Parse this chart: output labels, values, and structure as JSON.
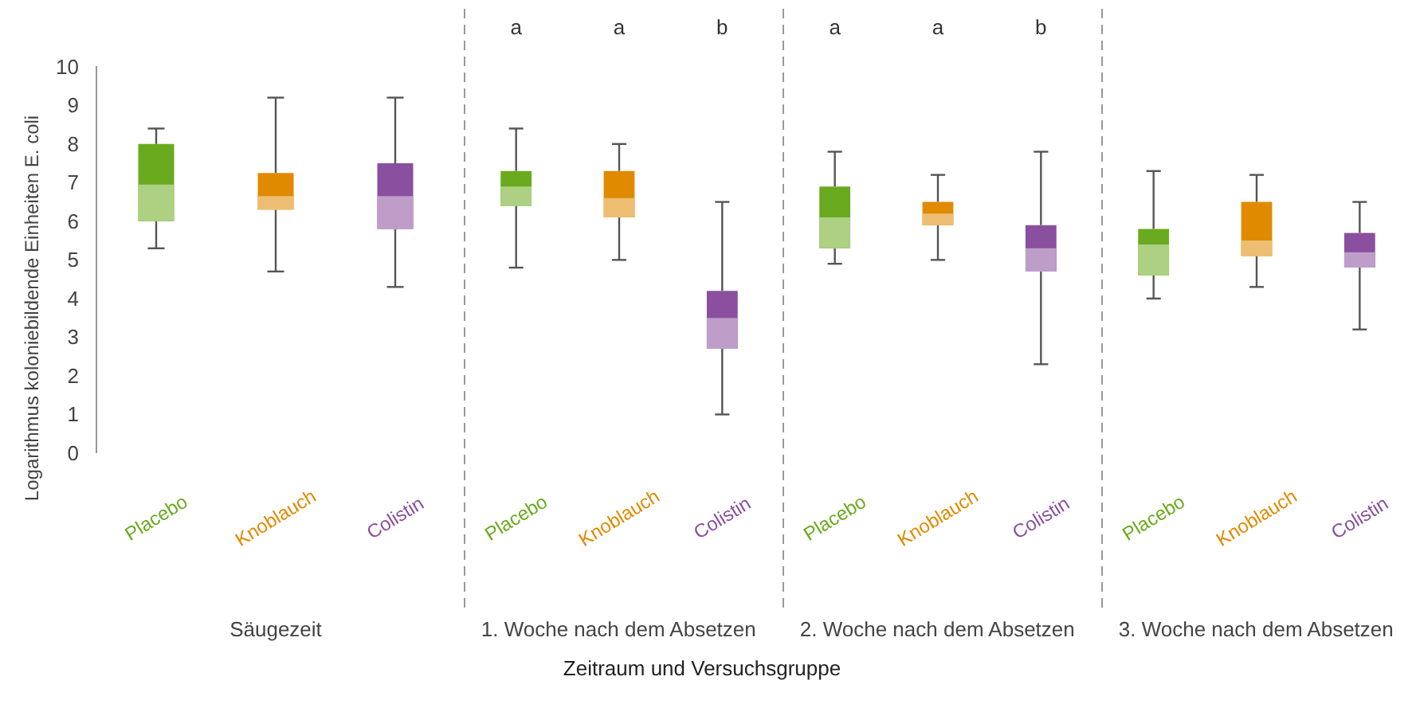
{
  "chart_data": [
    {
      "type": "box",
      "xlabel": "Säugezeit",
      "ylabel": "Logarithmus koloniebildende Einheiten E. coli",
      "categories": [
        "Placebo",
        "Knoblauch",
        "Colistin"
      ],
      "colors": [
        "#6aaa1e",
        "#e08a00",
        "#8a4f9e"
      ],
      "ylim": [
        -4,
        11.5
      ],
      "yticks": [
        0,
        1,
        2,
        3,
        4,
        5,
        6,
        7,
        8,
        9,
        10
      ],
      "grid": false,
      "boxes": [
        {
          "low": 5.3,
          "q1": 6.0,
          "median": 6.95,
          "q3": 8.0,
          "high": 8.4
        },
        {
          "low": 4.7,
          "q1": 6.3,
          "median": 6.65,
          "q3": 7.25,
          "high": 9.2
        },
        {
          "low": 4.3,
          "q1": 5.8,
          "median": 6.65,
          "q3": 7.5,
          "high": 9.2
        }
      ],
      "annotations": [
        "Zeitraum und Versuchsgruppe"
      ]
    },
    {
      "type": "box",
      "xlabel": "1. Woche nach dem Absetzen",
      "categories": [
        "Placebo",
        "Knoblauch",
        "Colistin"
      ],
      "colors": [
        "#6aaa1e",
        "#e08a00",
        "#8a4f9e"
      ],
      "ylim": [
        -4,
        11.5
      ],
      "tick_labels": "x",
      "grid": false,
      "boxes": [
        {
          "low": 4.8,
          "q1": 6.4,
          "median": 6.9,
          "q3": 7.3,
          "high": 8.4
        },
        {
          "low": 5.0,
          "q1": 6.1,
          "median": 6.6,
          "q3": 7.3,
          "high": 8.0
        },
        {
          "low": 1.0,
          "q1": 2.7,
          "median": 3.5,
          "q3": 4.2,
          "high": 6.5
        }
      ],
      "annotations": [
        "a",
        "a",
        "b"
      ]
    },
    {
      "type": "box",
      "xlabel": "2. Woche nach dem Absetzen",
      "categories": [
        "Placebo",
        "Knoblauch",
        "Colistin"
      ],
      "colors": [
        "#6aaa1e",
        "#e08a00",
        "#8a4f9e"
      ],
      "ylim": [
        -4,
        11.5
      ],
      "tick_labels": "x",
      "grid": false,
      "boxes": [
        {
          "low": 4.9,
          "q1": 5.3,
          "median": 6.1,
          "q3": 6.9,
          "high": 7.8
        },
        {
          "low": 5.0,
          "q1": 5.9,
          "median": 6.2,
          "q3": 6.5,
          "high": 7.2
        },
        {
          "low": 2.3,
          "q1": 4.7,
          "median": 5.3,
          "q3": 5.9,
          "high": 7.8
        }
      ],
      "annotations": [
        "a",
        "a",
        "b"
      ]
    },
    {
      "type": "box",
      "xlabel": "3. Woche nach dem Absetzen",
      "categories": [
        "Placebo",
        "Knoblauch",
        "Colistin"
      ],
      "colors": [
        "#6aaa1e",
        "#e08a00",
        "#8a4f9e"
      ],
      "ylim": [
        -4,
        11.5
      ],
      "tick_labels": "x",
      "grid": false,
      "boxes": [
        {
          "low": 4.0,
          "q1": 4.6,
          "median": 5.4,
          "q3": 5.8,
          "high": 7.3
        },
        {
          "low": 4.3,
          "q1": 5.1,
          "median": 5.5,
          "q3": 6.5,
          "high": 7.2
        },
        {
          "low": 3.2,
          "q1": 4.8,
          "median": 5.2,
          "q3": 5.7,
          "high": 6.5
        }
      ]
    }
  ]
}
